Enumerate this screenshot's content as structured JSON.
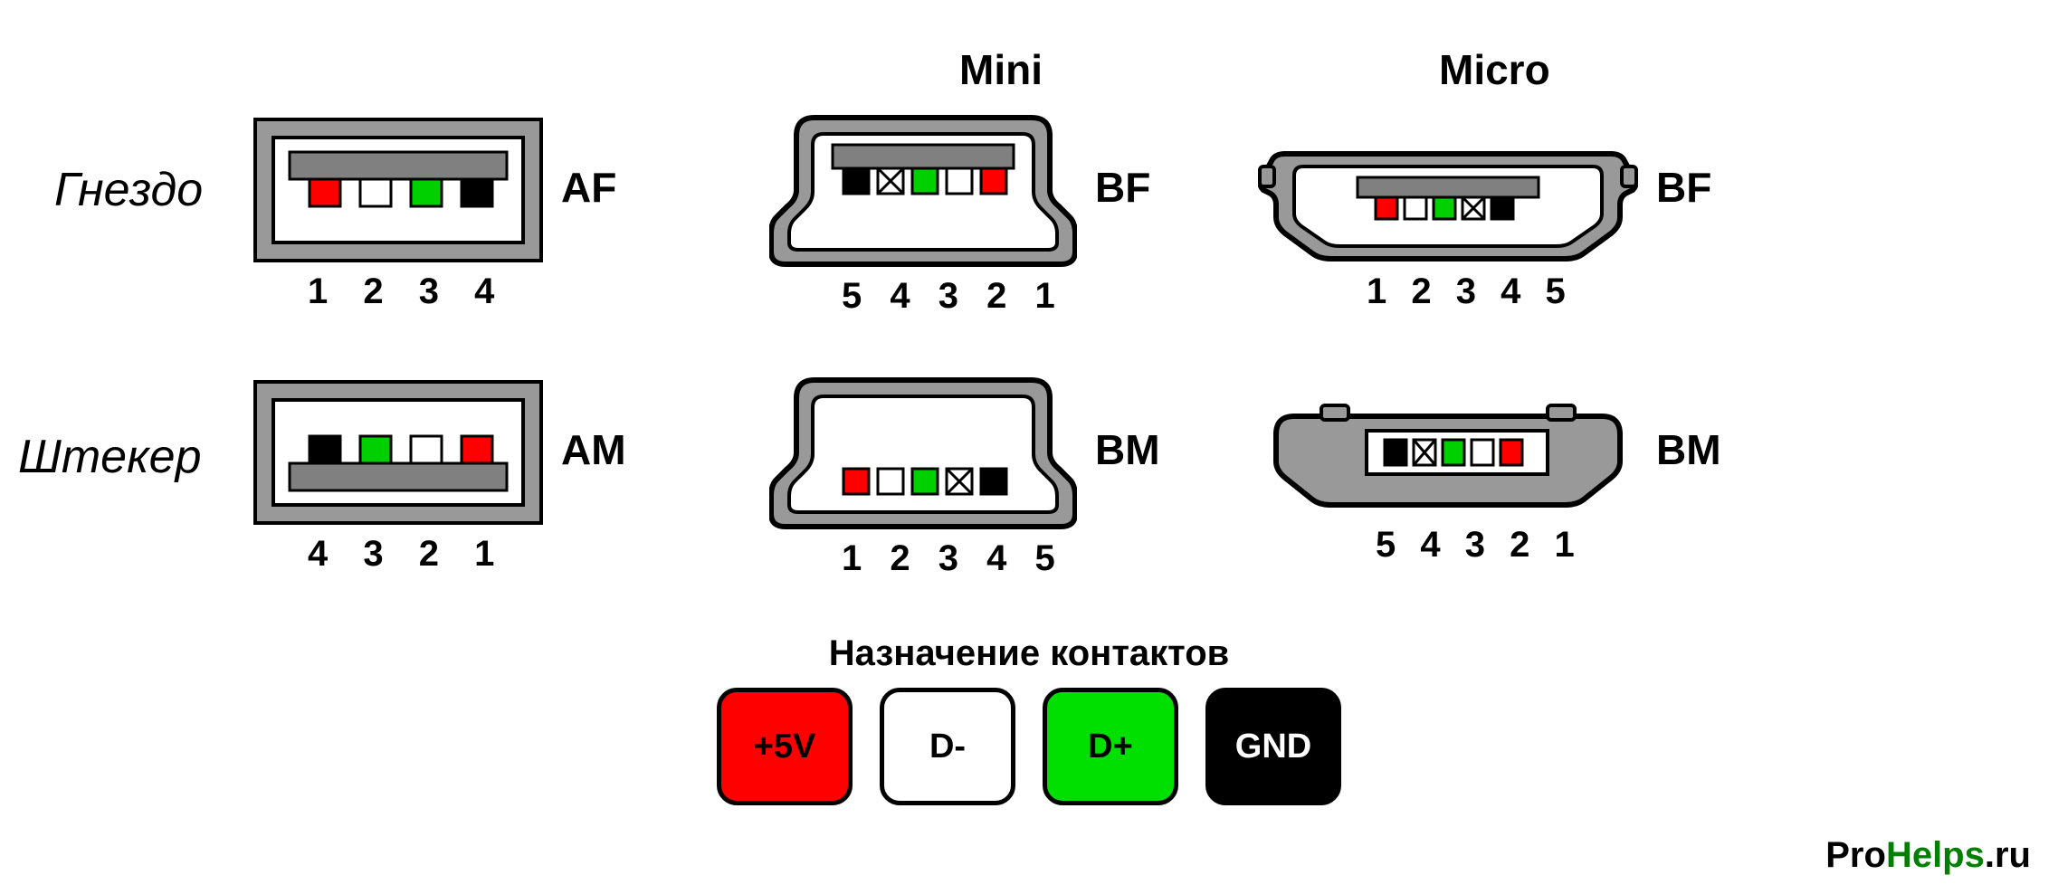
{
  "columns": {
    "mini": "Mini",
    "micro": "Micro"
  },
  "rows": {
    "socket": "Гнездо",
    "plug": "Штекер"
  },
  "connectors": {
    "af": {
      "type_label": "AF",
      "pin_labels": "1 2 3 4",
      "pins": [
        {
          "color": "#ff0000",
          "cross": false
        },
        {
          "color": "#ffffff",
          "cross": false
        },
        {
          "color": "#00d000",
          "cross": false
        },
        {
          "color": "#000000",
          "cross": false
        }
      ]
    },
    "am": {
      "type_label": "AM",
      "pin_labels": "4 3 2 1",
      "pins": [
        {
          "color": "#000000",
          "cross": false
        },
        {
          "color": "#00d000",
          "cross": false
        },
        {
          "color": "#ffffff",
          "cross": false
        },
        {
          "color": "#ff0000",
          "cross": false
        }
      ]
    },
    "mini_bf": {
      "type_label": "BF",
      "pin_labels": "5 4 3 2 1",
      "pins": [
        {
          "color": "#000000",
          "cross": false
        },
        {
          "color": "#ffffff",
          "cross": true
        },
        {
          "color": "#00d000",
          "cross": false
        },
        {
          "color": "#ffffff",
          "cross": false
        },
        {
          "color": "#ff0000",
          "cross": false
        }
      ]
    },
    "mini_bm": {
      "type_label": "BM",
      "pin_labels": "1 2 3 4 5",
      "pins": [
        {
          "color": "#ff0000",
          "cross": false
        },
        {
          "color": "#ffffff",
          "cross": false
        },
        {
          "color": "#00d000",
          "cross": false
        },
        {
          "color": "#ffffff",
          "cross": true
        },
        {
          "color": "#000000",
          "cross": false
        }
      ]
    },
    "micro_bf": {
      "type_label": "BF",
      "pin_labels": "1 2 3 4 5",
      "pins": [
        {
          "color": "#ff0000",
          "cross": false
        },
        {
          "color": "#ffffff",
          "cross": false
        },
        {
          "color": "#00d000",
          "cross": false
        },
        {
          "color": "#ffffff",
          "cross": true
        },
        {
          "color": "#000000",
          "cross": false
        }
      ]
    },
    "micro_bm": {
      "type_label": "BM",
      "pin_labels": "5 4 3 2 1",
      "pins": [
        {
          "color": "#000000",
          "cross": false
        },
        {
          "color": "#ffffff",
          "cross": true
        },
        {
          "color": "#00d000",
          "cross": false
        },
        {
          "color": "#ffffff",
          "cross": false
        },
        {
          "color": "#ff0000",
          "cross": false
        }
      ]
    }
  },
  "legend": {
    "title": "Назначение контактов",
    "items": [
      {
        "label": "+5V",
        "bg": "#ff0000",
        "fg": "#000000"
      },
      {
        "label": "D-",
        "bg": "#ffffff",
        "fg": "#000000"
      },
      {
        "label": "D+",
        "bg": "#00e000",
        "fg": "#000000"
      },
      {
        "label": "GND",
        "bg": "#000000",
        "fg": "#ffffff"
      }
    ]
  },
  "watermark": {
    "pre": "Pro",
    "mid": "Helps",
    "post": ".ru",
    "pre_color": "#000000",
    "mid_color": "#008000",
    "post_color": "#000000"
  },
  "style": {
    "shell_grey": "#999999",
    "shell_stroke": "#000000",
    "inner_white": "#ffffff",
    "contact_bar_grey": "#808080"
  }
}
